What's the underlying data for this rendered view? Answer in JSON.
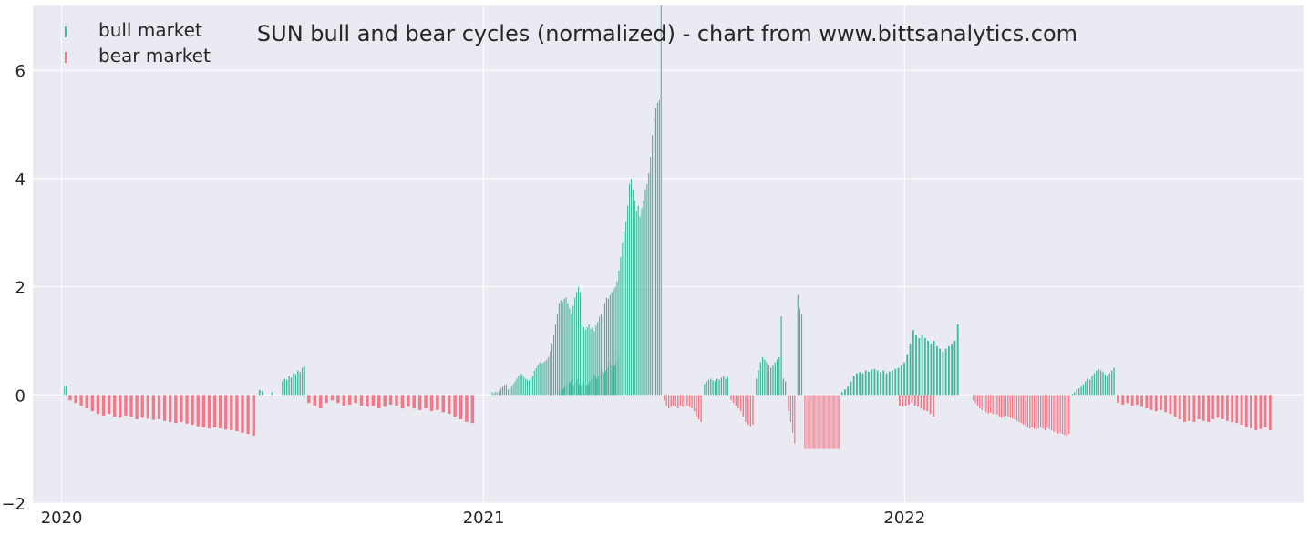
{
  "chart_data": {
    "type": "bar",
    "title": "SUN bull and bear cycles (normalized)  - chart from www.bittsanalytics.com",
    "xlabel": "",
    "ylabel": "",
    "ylim": [
      -2,
      7.2
    ],
    "y_ticks": [
      -2,
      0,
      2,
      4,
      6
    ],
    "y_tick_labels": [
      "−2",
      "0",
      "2",
      "4",
      "6"
    ],
    "x_ticks": [
      "2020-01-01",
      "2021-01-01",
      "2022-01-01"
    ],
    "x_tick_labels": [
      "2020",
      "2021",
      "2022"
    ],
    "x_range": [
      "2019-12-07",
      "2022-12-13"
    ],
    "grid": true,
    "legend_position": "top-left",
    "colors": {
      "background": "#eaeaf2",
      "grid": "#ffffff",
      "bull": "#3cb89a",
      "bear": "#f07a8a",
      "text": "#262626"
    },
    "series": [
      {
        "name": "bull market",
        "color": "#3cb89a",
        "segments": [
          {
            "start": "2020-01-03",
            "end": "2020-01-06",
            "values": [
              0.15,
              0.17
            ]
          },
          {
            "start": "2020-06-20",
            "end": "2020-06-25",
            "values": [
              0.09,
              0.07
            ]
          },
          {
            "start": "2020-07-01",
            "end": "2020-07-03",
            "values": [
              0.05
            ]
          },
          {
            "start": "2020-07-10",
            "end": "2020-07-31",
            "values": [
              0.25,
              0.3,
              0.28,
              0.35,
              0.32,
              0.4,
              0.38,
              0.45,
              0.42,
              0.5,
              0.52
            ]
          },
          {
            "start": "2021-01-08",
            "end": "2021-06-05",
            "values": [
              0.05,
              0.03,
              0.06,
              0.04,
              0.08,
              0.12,
              0.15,
              0.18,
              0.2,
              0.1,
              0.12,
              0.15,
              0.2,
              0.25,
              0.3,
              0.35,
              0.4,
              0.38,
              0.33,
              0.3,
              0.28,
              0.27,
              0.3,
              0.35,
              0.45,
              0.5,
              0.55,
              0.6,
              0.58,
              0.6,
              0.62,
              0.65,
              0.7,
              0.8,
              0.95,
              1.1,
              1.3,
              1.5,
              1.7,
              1.75,
              1.72,
              1.78,
              1.8,
              1.7,
              1.6,
              1.5,
              1.65,
              1.8,
              1.9,
              2.0,
              1.9,
              1.3,
              1.25,
              1.2,
              1.25,
              1.3,
              1.22,
              1.25,
              1.18,
              1.28,
              1.35,
              1.45,
              1.5,
              1.65,
              1.7,
              1.8,
              1.78,
              1.85,
              1.9,
              1.95,
              2.0,
              2.1,
              2.3,
              2.55,
              2.8,
              3.0,
              3.2,
              3.5,
              3.9,
              4.0,
              3.8,
              3.6,
              3.4,
              3.5,
              3.3,
              3.45,
              3.6,
              3.8,
              3.9,
              4.1,
              4.4,
              4.8,
              5.1,
              5.3,
              5.4,
              5.45,
              7.2
            ]
          },
          {
            "start": "2021-07-11",
            "end": "2021-08-02",
            "values": [
              0.2,
              0.25,
              0.28,
              0.3,
              0.27,
              0.25,
              0.3,
              0.28,
              0.32,
              0.35,
              0.3,
              0.33
            ]
          },
          {
            "start": "2021-08-25",
            "end": "2021-09-21",
            "values": [
              0.3,
              0.45,
              0.6,
              0.7,
              0.65,
              0.6,
              0.55,
              0.5,
              0.55,
              0.6,
              0.65,
              0.7,
              1.45,
              0.3,
              0.25
            ]
          },
          {
            "start": "2021-09-30",
            "end": "2021-10-05",
            "values": [
              1.85,
              1.6,
              1.5
            ]
          },
          {
            "start": "2021-11-07",
            "end": "2022-02-18",
            "values": [
              0.05,
              0.1,
              0.15,
              0.25,
              0.35,
              0.4,
              0.42,
              0.4,
              0.45,
              0.43,
              0.47,
              0.48,
              0.45,
              0.42,
              0.45,
              0.4,
              0.43,
              0.45,
              0.48,
              0.5,
              0.55,
              0.6,
              0.75,
              0.95,
              1.2,
              1.1,
              1.05,
              1.1,
              1.05,
              1.0,
              0.95,
              1.0,
              0.9,
              0.85,
              0.8,
              0.85,
              0.9,
              0.95,
              1.0,
              1.3
            ]
          },
          {
            "start": "2021-03-07",
            "end": "2021-04-29",
            "values": [
              0.05,
              0.08,
              0.1,
              0.12,
              0.15,
              0.18,
              0.2,
              0.22,
              0.25,
              0.2,
              0.18,
              0.22,
              0.25,
              0.3,
              0.2,
              0.15,
              0.2,
              0.25,
              0.2,
              0.18,
              0.2,
              0.25,
              0.3,
              0.35,
              0.4,
              0.35,
              0.3,
              0.35,
              0.4,
              0.5,
              0.45,
              0.4,
              0.45,
              0.5,
              0.55,
              0.6,
              0.55,
              0.5,
              0.55,
              0.6,
              0.65,
              0.7
            ]
          },
          {
            "start": "2022-05-26",
            "end": "2022-07-03",
            "values": [
              0.02,
              0.05,
              0.1,
              0.12,
              0.15,
              0.2,
              0.25,
              0.3,
              0.28,
              0.35,
              0.4,
              0.45,
              0.48,
              0.45,
              0.42,
              0.38,
              0.35,
              0.4,
              0.45,
              0.5
            ]
          }
        ]
      },
      {
        "name": "bear market",
        "color": "#f07a8a",
        "segments": [
          {
            "start": "2020-01-07",
            "end": "2020-06-19",
            "values": [
              -0.1,
              -0.15,
              -0.2,
              -0.25,
              -0.3,
              -0.35,
              -0.38,
              -0.35,
              -0.4,
              -0.42,
              -0.38,
              -0.4,
              -0.45,
              -0.42,
              -0.44,
              -0.46,
              -0.45,
              -0.48,
              -0.5,
              -0.52,
              -0.5,
              -0.53,
              -0.55,
              -0.58,
              -0.6,
              -0.62,
              -0.6,
              -0.62,
              -0.64,
              -0.65,
              -0.67,
              -0.7,
              -0.72,
              -0.75
            ]
          },
          {
            "start": "2020-08-01",
            "end": "2020-12-26",
            "values": [
              -0.15,
              -0.2,
              -0.25,
              -0.15,
              -0.1,
              -0.15,
              -0.2,
              -0.18,
              -0.15,
              -0.2,
              -0.22,
              -0.2,
              -0.25,
              -0.22,
              -0.18,
              -0.2,
              -0.25,
              -0.22,
              -0.25,
              -0.28,
              -0.25,
              -0.3,
              -0.28,
              -0.32,
              -0.35,
              -0.4,
              -0.45,
              -0.5,
              -0.52
            ]
          },
          {
            "start": "2021-06-06",
            "end": "2021-07-10",
            "values": [
              -0.1,
              -0.2,
              -0.25,
              -0.22,
              -0.2,
              -0.22,
              -0.25,
              -0.2,
              -0.22,
              -0.25,
              -0.2,
              -0.22,
              -0.25,
              -0.3,
              -0.4,
              -0.45,
              -0.5
            ]
          },
          {
            "start": "2021-08-03",
            "end": "2021-08-24",
            "values": [
              -0.1,
              -0.15,
              -0.2,
              -0.25,
              -0.3,
              -0.4,
              -0.5,
              -0.55,
              -0.58,
              -0.55
            ]
          },
          {
            "start": "2021-09-22",
            "end": "2021-09-29",
            "values": [
              -0.3,
              -0.5,
              -0.7,
              -0.9
            ]
          },
          {
            "start": "2021-10-06",
            "end": "2021-11-06",
            "values": [
              -1.0,
              -1.0,
              -1.0,
              -1.0,
              -1.0,
              -1.0,
              -1.0,
              -1.0,
              -1.0,
              -1.0,
              -1.0,
              -1.0,
              -1.0,
              -1.0,
              -1.0,
              -1.0,
              -1.0,
              -1.0,
              -1.0,
              -1.0,
              -1.0,
              -1.0,
              -1.0,
              -1.0,
              -1.0,
              -1.0,
              -1.0,
              -1.0,
              -1.0,
              -1.0,
              -1.0,
              -1.0
            ]
          },
          {
            "start": "2021-12-27",
            "end": "2022-01-28",
            "values": [
              -0.2,
              -0.22,
              -0.2,
              -0.18,
              -0.15,
              -0.2,
              -0.22,
              -0.25,
              -0.28,
              -0.3,
              -0.35,
              -0.4
            ]
          },
          {
            "start": "2022-03-01",
            "end": "2022-05-25",
            "values": [
              -0.1,
              -0.15,
              -0.2,
              -0.25,
              -0.28,
              -0.3,
              -0.32,
              -0.35,
              -0.33,
              -0.35,
              -0.38,
              -0.36,
              -0.4,
              -0.42,
              -0.4,
              -0.38,
              -0.4,
              -0.42,
              -0.44,
              -0.45,
              -0.48,
              -0.5,
              -0.52,
              -0.55,
              -0.58,
              -0.6,
              -0.62,
              -0.6,
              -0.63,
              -0.65,
              -0.62,
              -0.6,
              -0.62,
              -0.65,
              -0.6,
              -0.63,
              -0.65,
              -0.68,
              -0.7,
              -0.72,
              -0.7,
              -0.72,
              -0.74,
              -0.75,
              -0.72
            ]
          },
          {
            "start": "2022-07-04",
            "end": "2022-11-17",
            "values": [
              -0.15,
              -0.18,
              -0.15,
              -0.2,
              -0.18,
              -0.22,
              -0.25,
              -0.28,
              -0.3,
              -0.28,
              -0.32,
              -0.35,
              -0.4,
              -0.45,
              -0.5,
              -0.48,
              -0.5,
              -0.45,
              -0.48,
              -0.5,
              -0.45,
              -0.42,
              -0.45,
              -0.48,
              -0.5,
              -0.52,
              -0.55,
              -0.6,
              -0.62,
              -0.65,
              -0.63,
              -0.6,
              -0.65
            ]
          }
        ]
      }
    ]
  }
}
